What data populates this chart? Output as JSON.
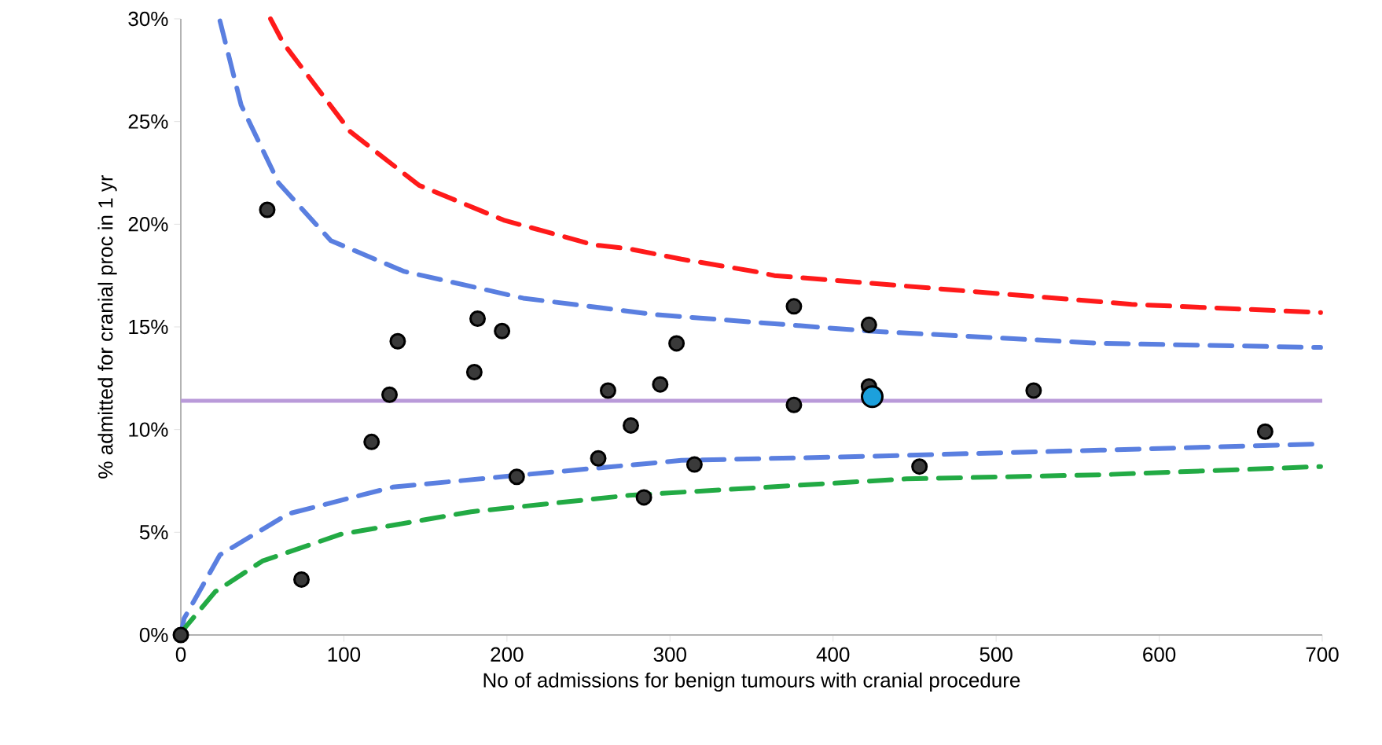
{
  "chart_data": {
    "type": "scatter",
    "xlabel": "No of admissions for benign tumours with cranial procedure",
    "ylabel": "% admitted for cranial proc in 1 yr",
    "xlim": [
      0,
      700
    ],
    "ylim": [
      0,
      30
    ],
    "xticks": [
      0,
      100,
      200,
      300,
      400,
      500,
      600,
      700
    ],
    "yticks": [
      {
        "value": 0,
        "label": "0%"
      },
      {
        "value": 5,
        "label": "5%"
      },
      {
        "value": 10,
        "label": "10%"
      },
      {
        "value": 15,
        "label": "15%"
      },
      {
        "value": 20,
        "label": "20%"
      },
      {
        "value": 25,
        "label": "25%"
      },
      {
        "value": 30,
        "label": "30%"
      }
    ],
    "grid": false,
    "line_style": "dashed",
    "ref_lines": [
      {
        "axis": "y",
        "value": 11.4,
        "color": "#b99ad9"
      }
    ],
    "series": [
      {
        "type": "line",
        "color": "#ff1a1a",
        "x": [
          55,
          63,
          104,
          146,
          198,
          253,
          275,
          307,
          352,
          364,
          474,
          583,
          699
        ],
        "values": [
          30,
          28.8,
          24.5,
          21.9,
          20.2,
          19.0,
          18.8,
          18.3,
          17.7,
          17.5,
          16.8,
          16.1,
          15.7
        ]
      },
      {
        "type": "line",
        "color": "#5a7fe0",
        "x": [
          24,
          37,
          60,
          92,
          137,
          210,
          291,
          422,
          564,
          699
        ],
        "values": [
          29.9,
          25.8,
          22.0,
          19.2,
          17.7,
          16.4,
          15.6,
          14.8,
          14.2,
          14.0
        ]
      },
      {
        "type": "line",
        "color": "#5a7fe0",
        "x": [
          0,
          2,
          24,
          66,
          130,
          210,
          307,
          422,
          564,
          699
        ],
        "values": [
          0,
          0.8,
          3.9,
          5.9,
          7.2,
          7.8,
          8.5,
          8.7,
          9.0,
          9.3
        ]
      },
      {
        "type": "line",
        "color": "#22aa44",
        "x": [
          0,
          2,
          21,
          50,
          98,
          178,
          275,
          445,
          564,
          699
        ],
        "values": [
          0,
          0.3,
          2.1,
          3.6,
          4.9,
          6.0,
          6.8,
          7.6,
          7.8,
          8.2
        ]
      },
      {
        "marker": "circle",
        "color": "#3a3a3a",
        "x": [
          0,
          53,
          74,
          117,
          128,
          133,
          180,
          182,
          197,
          206,
          256,
          262,
          276,
          284,
          294,
          304,
          315,
          376,
          376,
          422,
          422,
          453,
          523,
          665
        ],
        "values": [
          0,
          20.7,
          2.7,
          9.4,
          11.7,
          14.3,
          12.8,
          15.4,
          14.8,
          7.7,
          8.6,
          11.9,
          10.2,
          6.7,
          12.2,
          14.2,
          8.3,
          16.0,
          11.2,
          15.1,
          12.1,
          8.2,
          11.9,
          9.9
        ]
      },
      {
        "marker": "circle",
        "color": "#1ca0dc",
        "x": [
          424
        ],
        "values": [
          11.6
        ]
      }
    ]
  }
}
